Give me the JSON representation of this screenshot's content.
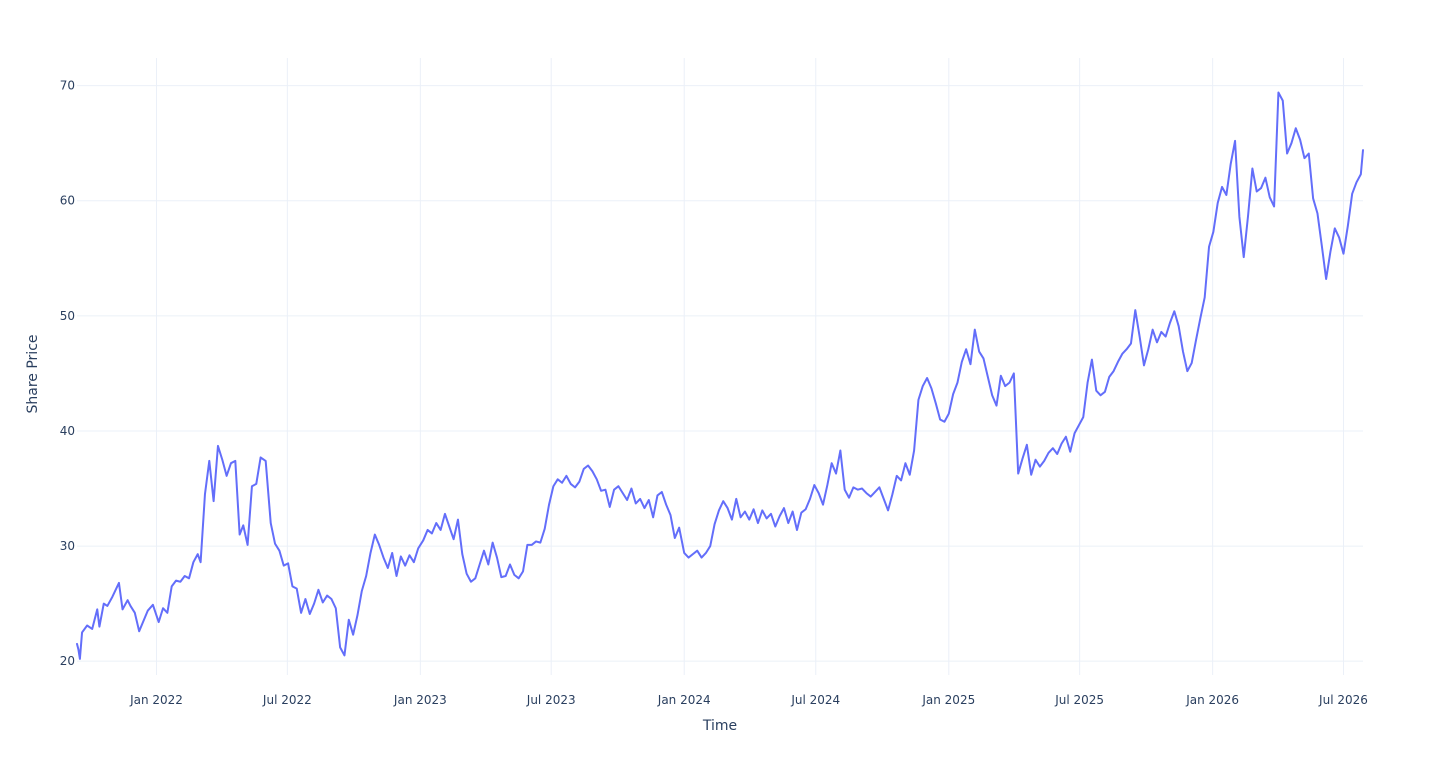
{
  "chart_data": {
    "type": "line",
    "title": "",
    "xlabel": "Time",
    "ylabel": "Share Price",
    "xlim": [
      "2021-09-13",
      "2026-07-28"
    ],
    "ylim": [
      18.8,
      72.4
    ],
    "grid": true,
    "legend": "none",
    "line_color": "#636efa",
    "grid_color": "#ebf0f8",
    "text_color": "#2a3f5f",
    "y_ticks": [
      20,
      30,
      40,
      50,
      60,
      70
    ],
    "x_ticks": [
      {
        "date": "2022-01-01",
        "label": "Jan 2022"
      },
      {
        "date": "2022-07-01",
        "label": "Jul 2022"
      },
      {
        "date": "2023-01-01",
        "label": "Jan 2023"
      },
      {
        "date": "2023-07-01",
        "label": "Jul 2023"
      },
      {
        "date": "2024-01-01",
        "label": "Jan 2024"
      },
      {
        "date": "2024-07-01",
        "label": "Jul 2024"
      },
      {
        "date": "2025-01-01",
        "label": "Jan 2025"
      },
      {
        "date": "2025-07-01",
        "label": "Jul 2025"
      },
      {
        "date": "2026-01-01",
        "label": "Jan 2026"
      },
      {
        "date": "2026-07-01",
        "label": "Jul 2026"
      }
    ],
    "series": [
      {
        "x": [
          "2021-09-13",
          "2021-09-15",
          "2021-09-17",
          "2021-09-20",
          "2021-09-27",
          "2021-10-04",
          "2021-10-11",
          "2021-10-14",
          "2021-10-20",
          "2021-10-25",
          "2021-11-01",
          "2021-11-10",
          "2021-11-15",
          "2021-11-22",
          "2021-11-26",
          "2021-12-02",
          "2021-12-08",
          "2021-12-14",
          "2021-12-20",
          "2021-12-27",
          "2022-01-04",
          "2022-01-10",
          "2022-01-16",
          "2022-01-22",
          "2022-01-28",
          "2022-02-03",
          "2022-02-09",
          "2022-02-15",
          "2022-02-21",
          "2022-02-27",
          "2022-03-03",
          "2022-03-09",
          "2022-03-15",
          "2022-03-21",
          "2022-03-27",
          "2022-04-02",
          "2022-04-08",
          "2022-04-14",
          "2022-04-20",
          "2022-04-26",
          "2022-05-01",
          "2022-05-07",
          "2022-05-13",
          "2022-05-19",
          "2022-05-25",
          "2022-06-01",
          "2022-06-08",
          "2022-06-14",
          "2022-06-20",
          "2022-06-26",
          "2022-07-02",
          "2022-07-08",
          "2022-07-14",
          "2022-07-20",
          "2022-07-26",
          "2022-08-01",
          "2022-08-07",
          "2022-08-13",
          "2022-08-19",
          "2022-08-25",
          "2022-08-31",
          "2022-09-06",
          "2022-09-12",
          "2022-09-18",
          "2022-09-24",
          "2022-09-30",
          "2022-10-06",
          "2022-10-12",
          "2022-10-18",
          "2022-10-24",
          "2022-10-30",
          "2022-11-05",
          "2022-11-11",
          "2022-11-17",
          "2022-11-23",
          "2022-11-29",
          "2022-12-05",
          "2022-12-11",
          "2022-12-17",
          "2022-12-23",
          "2022-12-29",
          "2023-01-05",
          "2023-01-11",
          "2023-01-17",
          "2023-01-23",
          "2023-01-29",
          "2023-02-04",
          "2023-02-10",
          "2023-02-16",
          "2023-02-22",
          "2023-02-28",
          "2023-03-06",
          "2023-03-12",
          "2023-03-18",
          "2023-03-24",
          "2023-03-30",
          "2023-04-05",
          "2023-04-11",
          "2023-04-17",
          "2023-04-23",
          "2023-04-29",
          "2023-05-05",
          "2023-05-11",
          "2023-05-17",
          "2023-05-23",
          "2023-05-29",
          "2023-06-04",
          "2023-06-10",
          "2023-06-16",
          "2023-06-22",
          "2023-06-28",
          "2023-07-04",
          "2023-07-10",
          "2023-07-16",
          "2023-07-22",
          "2023-07-28",
          "2023-08-03",
          "2023-08-09",
          "2023-08-15",
          "2023-08-21",
          "2023-08-27",
          "2023-09-02",
          "2023-09-08",
          "2023-09-14",
          "2023-09-20",
          "2023-09-26",
          "2023-10-02",
          "2023-10-08",
          "2023-10-14",
          "2023-10-20",
          "2023-10-26",
          "2023-11-01",
          "2023-11-07",
          "2023-11-13",
          "2023-11-19",
          "2023-11-25",
          "2023-12-01",
          "2023-12-07",
          "2023-12-13",
          "2023-12-19",
          "2023-12-25",
          "2024-01-01",
          "2024-01-07",
          "2024-01-13",
          "2024-01-19",
          "2024-01-25",
          "2024-01-31",
          "2024-02-06",
          "2024-02-12",
          "2024-02-18",
          "2024-02-24",
          "2024-03-01",
          "2024-03-07",
          "2024-03-13",
          "2024-03-19",
          "2024-03-25",
          "2024-03-31",
          "2024-04-06",
          "2024-04-12",
          "2024-04-18",
          "2024-04-24",
          "2024-04-30",
          "2024-05-06",
          "2024-05-12",
          "2024-05-18",
          "2024-05-24",
          "2024-05-30",
          "2024-06-05",
          "2024-06-11",
          "2024-06-17",
          "2024-06-23",
          "2024-06-29",
          "2024-07-05",
          "2024-07-11",
          "2024-07-17",
          "2024-07-23",
          "2024-07-29",
          "2024-08-04",
          "2024-08-10",
          "2024-08-16",
          "2024-08-22",
          "2024-08-28",
          "2024-09-03",
          "2024-09-09",
          "2024-09-15",
          "2024-09-21",
          "2024-09-27",
          "2024-10-03",
          "2024-10-09",
          "2024-10-15",
          "2024-10-21",
          "2024-10-27",
          "2024-11-02",
          "2024-11-08",
          "2024-11-14",
          "2024-11-20",
          "2024-11-26",
          "2024-12-02",
          "2024-12-08",
          "2024-12-14",
          "2024-12-20",
          "2024-12-26",
          "2025-01-01",
          "2025-01-07",
          "2025-01-13",
          "2025-01-19",
          "2025-01-25",
          "2025-01-31",
          "2025-02-06",
          "2025-02-12",
          "2025-02-18",
          "2025-02-24",
          "2025-03-02",
          "2025-03-08",
          "2025-03-14",
          "2025-03-20",
          "2025-03-26",
          "2025-04-01",
          "2025-04-07",
          "2025-04-13",
          "2025-04-19",
          "2025-04-25",
          "2025-05-01",
          "2025-05-07",
          "2025-05-13",
          "2025-05-19",
          "2025-05-25",
          "2025-05-31",
          "2025-06-06",
          "2025-06-12",
          "2025-06-18",
          "2025-06-24",
          "2025-06-30",
          "2025-07-06",
          "2025-07-12",
          "2025-07-18",
          "2025-07-24",
          "2025-07-30",
          "2025-08-05",
          "2025-08-11",
          "2025-08-17",
          "2025-08-23",
          "2025-08-29",
          "2025-09-04",
          "2025-09-10",
          "2025-09-16",
          "2025-09-22",
          "2025-09-28",
          "2025-10-04",
          "2025-10-10",
          "2025-10-16",
          "2025-10-22",
          "2025-10-28",
          "2025-11-03",
          "2025-11-09",
          "2025-11-15",
          "2025-11-21",
          "2025-11-27",
          "2025-12-03",
          "2025-12-09",
          "2025-12-15",
          "2025-12-21",
          "2025-12-27",
          "2026-01-02",
          "2026-01-08",
          "2026-01-14",
          "2026-01-20",
          "2026-01-26",
          "2026-02-01",
          "2026-02-07",
          "2026-02-13",
          "2026-02-19",
          "2026-02-25",
          "2026-03-03",
          "2026-03-09",
          "2026-03-15",
          "2026-03-21",
          "2026-03-27",
          "2026-04-02",
          "2026-04-08",
          "2026-04-14",
          "2026-04-20",
          "2026-04-26",
          "2026-05-02",
          "2026-05-08",
          "2026-05-14",
          "2026-05-20",
          "2026-05-26",
          "2026-06-01",
          "2026-06-07",
          "2026-06-13",
          "2026-06-19",
          "2026-06-25",
          "2026-07-01",
          "2026-07-07",
          "2026-07-13",
          "2026-07-19",
          "2026-07-25",
          "2026-07-28"
        ],
        "y": [
          21.5,
          21.0,
          20.2,
          22.5,
          23.1,
          22.8,
          24.5,
          23.0,
          25.0,
          24.8,
          25.6,
          26.8,
          24.5,
          25.3,
          24.8,
          24.2,
          22.6,
          23.5,
          24.4,
          24.9,
          23.4,
          24.6,
          24.2,
          26.5,
          27.0,
          26.9,
          27.4,
          27.2,
          28.6,
          29.3,
          28.6,
          34.5,
          37.4,
          33.9,
          38.7,
          37.5,
          36.1,
          37.2,
          37.4,
          31.0,
          31.8,
          30.1,
          35.2,
          35.4,
          37.7,
          37.4,
          32.0,
          30.2,
          29.6,
          28.3,
          28.5,
          26.5,
          26.3,
          24.2,
          25.4,
          24.1,
          25.0,
          26.2,
          25.1,
          25.7,
          25.4,
          24.6,
          21.2,
          20.5,
          23.6,
          22.3,
          24.0,
          26.1,
          27.4,
          29.4,
          31.0,
          30.1,
          29.0,
          28.1,
          29.4,
          27.4,
          29.1,
          28.3,
          29.2,
          28.6,
          29.8,
          30.5,
          31.4,
          31.1,
          32.0,
          31.4,
          32.8,
          31.7,
          30.6,
          32.3,
          29.3,
          27.6,
          26.9,
          27.2,
          28.4,
          29.6,
          28.4,
          30.3,
          29.0,
          27.3,
          27.4,
          28.4,
          27.5,
          27.2,
          27.8,
          30.1,
          30.1,
          30.4,
          30.3,
          31.5,
          33.6,
          35.2,
          35.8,
          35.5,
          36.1,
          35.4,
          35.1,
          35.6,
          36.7,
          37.0,
          36.5,
          35.8,
          34.8,
          34.9,
          33.4,
          34.9,
          35.2,
          34.6,
          34.0,
          35.0,
          33.7,
          34.1,
          33.3,
          34.0,
          32.5,
          34.4,
          34.7,
          33.6,
          32.7,
          30.7,
          31.6,
          29.4,
          29.0,
          29.3,
          29.6,
          29.0,
          29.4,
          30.0,
          31.9,
          33.1,
          33.9,
          33.3,
          32.3,
          34.1,
          32.5,
          33.0,
          32.3,
          33.2,
          32.0,
          33.1,
          32.4,
          32.8,
          31.7,
          32.6,
          33.3,
          32.0,
          33.0,
          31.4,
          32.9,
          33.2,
          34.1,
          35.3,
          34.6,
          33.6,
          35.3,
          37.2,
          36.3,
          38.3,
          34.9,
          34.2,
          35.1,
          34.9,
          35.0,
          34.6,
          34.3,
          34.7,
          35.1,
          34.1,
          33.1,
          34.5,
          36.1,
          35.7,
          37.2,
          36.2,
          38.3,
          42.7,
          43.9,
          44.6,
          43.7,
          42.4,
          41.0,
          40.8,
          41.5,
          43.2,
          44.2,
          46.0,
          47.1,
          45.8,
          48.8,
          46.9,
          46.3,
          44.7,
          43.1,
          42.2,
          44.8,
          43.9,
          44.2,
          45.0,
          36.3,
          37.6,
          38.8,
          36.2,
          37.5,
          36.9,
          37.4,
          38.1,
          38.5,
          38.0,
          38.9,
          39.5,
          38.2,
          39.8,
          40.5,
          41.2,
          44.2,
          46.2,
          43.5,
          43.1,
          43.4,
          44.7,
          45.2,
          46.0,
          46.7,
          47.1,
          47.6,
          50.5,
          48.2,
          45.7,
          47.1,
          48.8,
          47.7,
          48.6,
          48.2,
          49.4,
          50.4,
          49.1,
          46.9,
          45.2,
          45.9,
          47.9,
          49.8,
          51.6,
          56.0,
          57.3,
          59.8,
          61.2,
          60.5,
          63.2,
          65.2,
          58.6,
          55.1,
          58.7,
          62.8,
          60.8,
          61.1,
          62.0,
          60.3,
          59.5,
          69.4,
          68.7,
          64.1,
          65.0,
          66.3,
          65.3,
          63.7,
          64.1,
          60.2,
          58.9,
          56.1,
          53.2,
          55.6,
          57.6,
          56.8,
          55.4,
          57.8,
          60.6,
          61.6,
          62.3,
          64.4
        ]
      }
    ]
  }
}
